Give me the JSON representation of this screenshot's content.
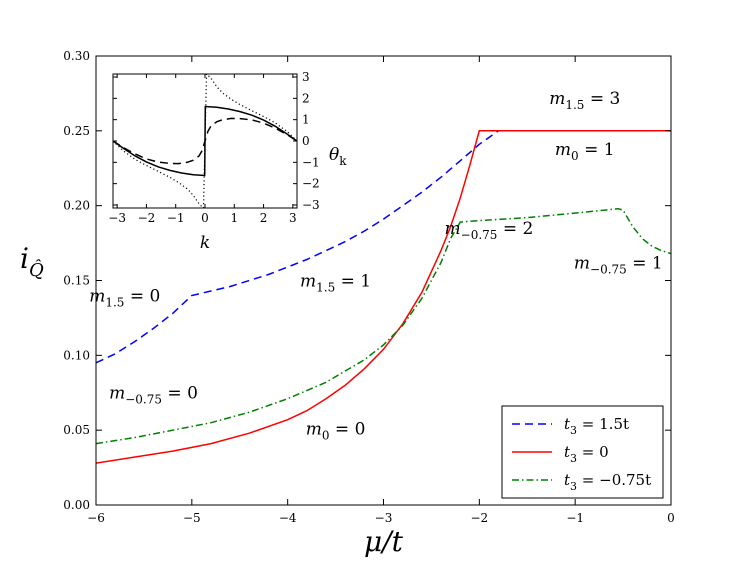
{
  "chart_data": [
    {
      "id": "main",
      "type": "line",
      "xlabel": "μ/t",
      "ylabel": "i_Q̂",
      "ylabel_parts": {
        "base": "i",
        "sub": "Q̂"
      },
      "xlim": [
        -6,
        0
      ],
      "ylim": [
        0.0,
        0.3
      ],
      "xticks": [
        -6,
        -5,
        -4,
        -3,
        -2,
        -1,
        0
      ],
      "xtick_labels": [
        "−6",
        "−5",
        "−4",
        "−3",
        "−2",
        "−1",
        "0"
      ],
      "yticks": [
        0.0,
        0.05,
        0.1,
        0.15,
        0.2,
        0.25,
        0.3
      ],
      "ytick_labels": [
        "0.00",
        "0.05",
        "0.10",
        "0.15",
        "0.20",
        "0.25",
        "0.30"
      ],
      "grid": false,
      "legend_position": "lower-right",
      "series": [
        {
          "name": "t3 = 1.5t",
          "legend": {
            "base": "t",
            "sub": "3",
            "rest": " = 1.5t"
          },
          "color": "#0000ff",
          "style": "dashed",
          "x": [
            -6.0,
            -5.8,
            -5.6,
            -5.4,
            -5.2,
            -5.0,
            -4.8,
            -4.6,
            -4.4,
            -4.2,
            -4.0,
            -3.8,
            -3.6,
            -3.4,
            -3.2,
            -3.0,
            -2.8,
            -2.6,
            -2.4,
            -2.2,
            -2.0,
            -1.8,
            -1.5,
            -1.0,
            -0.5,
            0.0
          ],
          "y": [
            0.095,
            0.101,
            0.109,
            0.118,
            0.128,
            0.14,
            0.143,
            0.146,
            0.15,
            0.154,
            0.159,
            0.164,
            0.17,
            0.176,
            0.183,
            0.191,
            0.2,
            0.209,
            0.219,
            0.23,
            0.241,
            0.25,
            0.25,
            0.25,
            0.25,
            0.25
          ]
        },
        {
          "name": "t3 = 0",
          "legend": {
            "base": "t",
            "sub": "3",
            "rest": " = 0"
          },
          "color": "#ff0000",
          "style": "solid",
          "x": [
            -6.0,
            -5.6,
            -5.2,
            -4.8,
            -4.4,
            -4.0,
            -3.8,
            -3.6,
            -3.4,
            -3.2,
            -3.0,
            -2.8,
            -2.6,
            -2.4,
            -2.3,
            -2.2,
            -2.1,
            -2.0,
            -1.5,
            -1.0,
            -0.5,
            0.0
          ],
          "y": [
            0.028,
            0.032,
            0.036,
            0.041,
            0.048,
            0.057,
            0.063,
            0.071,
            0.08,
            0.091,
            0.104,
            0.121,
            0.142,
            0.17,
            0.186,
            0.205,
            0.227,
            0.25,
            0.25,
            0.25,
            0.25,
            0.25
          ]
        },
        {
          "name": "t3 = −0.75t",
          "legend": {
            "base": "t",
            "sub": "3",
            "rest": " = −0.75t"
          },
          "color": "#008000",
          "style": "dashdot",
          "x": [
            -6.0,
            -5.6,
            -5.2,
            -4.8,
            -4.4,
            -4.0,
            -3.6,
            -3.2,
            -3.0,
            -2.8,
            -2.6,
            -2.4,
            -2.3,
            -2.2,
            -2.0,
            -1.5,
            -1.0,
            -0.7,
            -0.55,
            -0.5,
            -0.4,
            -0.3,
            -0.2,
            -0.1,
            0.0
          ],
          "y": [
            0.041,
            0.045,
            0.05,
            0.055,
            0.062,
            0.071,
            0.082,
            0.097,
            0.107,
            0.12,
            0.138,
            0.162,
            0.178,
            0.189,
            0.19,
            0.192,
            0.195,
            0.197,
            0.198,
            0.197,
            0.186,
            0.178,
            0.173,
            0.17,
            0.168
          ]
        }
      ],
      "annotations": [
        {
          "base": "m",
          "sub": "1.5",
          "rest": " = 3",
          "x": -0.9,
          "y": 0.268
        },
        {
          "base": "m",
          "sub": "0",
          "rest": " = 1",
          "x": -0.9,
          "y": 0.234
        },
        {
          "base": "m",
          "sub": "−0.75",
          "rest": " = 2",
          "x": -1.9,
          "y": 0.181
        },
        {
          "base": "m",
          "sub": "−0.75",
          "rest": " = 1",
          "x": -0.55,
          "y": 0.158
        },
        {
          "base": "m",
          "sub": "1.5",
          "rest": " = 0",
          "x": -5.7,
          "y": 0.136
        },
        {
          "base": "m",
          "sub": "1.5",
          "rest": " = 1",
          "x": -3.5,
          "y": 0.146
        },
        {
          "base": "m",
          "sub": "−0.75",
          "rest": " = 0",
          "x": -5.4,
          "y": 0.071
        },
        {
          "base": "m",
          "sub": "0",
          "rest": " = 0",
          "x": -3.5,
          "y": 0.047
        }
      ]
    },
    {
      "id": "inset",
      "type": "line",
      "xlabel": "k",
      "ylabel": "θ_k",
      "ylabel_parts": {
        "base": "θ",
        "sub": "k"
      },
      "xlim": [
        -3.14159,
        3.14159
      ],
      "ylim": [
        -3.14159,
        3.14159
      ],
      "xticks": [
        -3,
        -2,
        -1,
        0,
        1,
        2,
        3
      ],
      "xtick_labels": [
        "−3",
        "−2",
        "−1",
        "0",
        "1",
        "2",
        "3"
      ],
      "yticks": [
        -3,
        -2,
        -1,
        0,
        1,
        2,
        3
      ],
      "ytick_labels": [
        "−3",
        "−2",
        "−1",
        "0",
        "1",
        "2",
        "3"
      ],
      "ytick_side": "right",
      "series": [
        {
          "name": "solid",
          "color": "#000000",
          "style": "solid",
          "x": [
            -3.1416,
            -2.8,
            -2.4,
            -2.0,
            -1.6,
            -1.2,
            -0.8,
            -0.4,
            -0.01,
            0.01,
            0.4,
            0.8,
            1.2,
            1.6,
            2.0,
            2.4,
            2.8,
            3.1416
          ],
          "y": [
            0.0,
            -0.33,
            -0.69,
            -0.98,
            -1.21,
            -1.38,
            -1.5,
            -1.58,
            -1.62,
            1.62,
            1.58,
            1.5,
            1.38,
            1.21,
            0.98,
            0.69,
            0.33,
            0.0
          ]
        },
        {
          "name": "dashed",
          "color": "#000000",
          "style": "dashed",
          "x": [
            -3.1416,
            -2.8,
            -2.4,
            -2.0,
            -1.6,
            -1.2,
            -0.9,
            -0.6,
            -0.4,
            -0.2,
            -0.1,
            0.0,
            0.1,
            0.2,
            0.4,
            0.6,
            0.9,
            1.2,
            1.6,
            2.0,
            2.4,
            2.8,
            3.1416
          ],
          "y": [
            0.0,
            -0.3,
            -0.6,
            -0.84,
            -0.99,
            -1.05,
            -1.06,
            -1.0,
            -0.9,
            -0.7,
            -0.45,
            0.0,
            0.45,
            0.7,
            0.9,
            1.0,
            1.06,
            1.05,
            0.99,
            0.84,
            0.6,
            0.3,
            0.0
          ]
        },
        {
          "name": "dotted",
          "color": "#000000",
          "style": "dotted",
          "x": [
            -3.1416,
            -2.8,
            -2.4,
            -2.0,
            -1.6,
            -1.2,
            -0.9,
            -0.6,
            -0.4,
            -0.2,
            -0.05,
            0.05,
            0.2,
            0.4,
            0.6,
            0.9,
            1.2,
            1.6,
            2.0,
            2.4,
            2.8,
            3.1416
          ],
          "y": [
            0.0,
            -0.45,
            -0.85,
            -1.15,
            -1.42,
            -1.7,
            -1.95,
            -2.25,
            -2.55,
            -2.95,
            -3.14,
            3.14,
            2.95,
            2.55,
            2.25,
            1.95,
            1.7,
            1.42,
            1.15,
            0.85,
            0.45,
            0.0
          ]
        }
      ]
    }
  ]
}
